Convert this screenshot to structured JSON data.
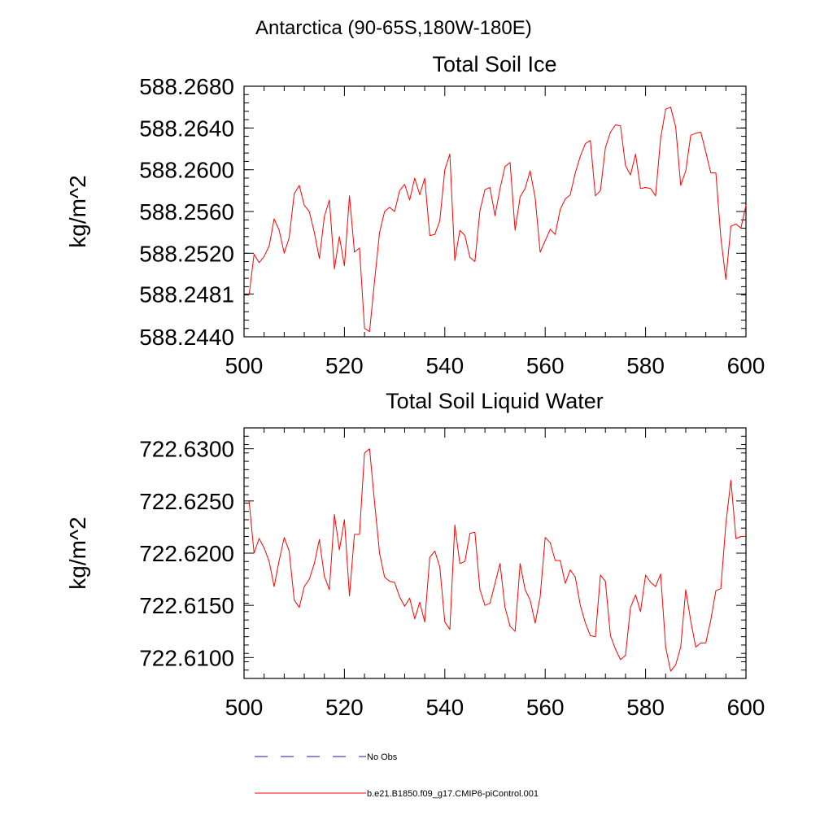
{
  "figure": {
    "supertitle": "Antarctica (90-65S,180W-180E)"
  },
  "legend": {
    "items": [
      {
        "label": "No Obs",
        "color": "#1a1a8c",
        "style": "dashed"
      },
      {
        "label": "b.e21.B1850.f09_g17.CMIP6-piControl.001",
        "color": "#ff0000",
        "style": "solid"
      }
    ]
  },
  "chart_data": [
    {
      "type": "line",
      "title": "Total Soil Ice",
      "xlabel": "",
      "ylabel": "kg/m^2",
      "xlim": [
        500,
        600
      ],
      "ylim": [
        588.244,
        588.268
      ],
      "xticks": [
        500,
        520,
        540,
        560,
        580,
        600
      ],
      "xtick_labels": [
        "500",
        "520",
        "540",
        "560",
        "580",
        "600"
      ],
      "yticks": [
        588.244,
        588.2481,
        588.252,
        588.256,
        588.26,
        588.264,
        588.268
      ],
      "ytick_labels": [
        "588.2440",
        "588.2481",
        "588.2520",
        "588.2560",
        "588.2600",
        "588.2640",
        "588.2680"
      ],
      "series": [
        {
          "name": "b.e21.B1850.f09_g17.CMIP6-piControl.001",
          "color": "#ff0000",
          "x": [
            501,
            502,
            503,
            504,
            505,
            506,
            507,
            508,
            509,
            510,
            511,
            512,
            513,
            514,
            515,
            516,
            517,
            518,
            519,
            520,
            521,
            522,
            523,
            524,
            525,
            526,
            527,
            528,
            529,
            530,
            531,
            532,
            533,
            534,
            535,
            536,
            537,
            538,
            539,
            540,
            541,
            542,
            543,
            544,
            545,
            546,
            547,
            548,
            549,
            550,
            551,
            552,
            553,
            554,
            555,
            556,
            557,
            558,
            559,
            560,
            561,
            562,
            563,
            564,
            565,
            566,
            567,
            568,
            569,
            570,
            571,
            572,
            573,
            574,
            575,
            576,
            577,
            578,
            579,
            580,
            581,
            582,
            583,
            584,
            585,
            586,
            587,
            588,
            589,
            590,
            591,
            592,
            593,
            594,
            595,
            596,
            597,
            598,
            599,
            600
          ],
          "values": [
            588.248,
            588.2519,
            588.2511,
            588.2517,
            588.2527,
            588.2553,
            588.2542,
            588.252,
            588.2535,
            588.2577,
            588.2585,
            588.2566,
            588.256,
            588.254,
            588.2515,
            588.2555,
            588.2571,
            588.2505,
            588.2536,
            588.2508,
            588.2575,
            588.2521,
            588.2525,
            588.2448,
            588.2445,
            588.2493,
            588.254,
            588.256,
            588.2564,
            588.256,
            588.258,
            588.2586,
            588.2571,
            588.2592,
            588.2576,
            588.2592,
            588.2537,
            588.2538,
            588.2551,
            588.26,
            588.2615,
            588.2513,
            588.2542,
            588.2537,
            588.2516,
            588.2512,
            588.2561,
            588.2581,
            588.2583,
            588.2556,
            588.2582,
            588.2603,
            588.2607,
            588.2542,
            588.2574,
            588.2582,
            588.2599,
            588.2573,
            588.2521,
            588.2532,
            588.2543,
            588.2538,
            588.2562,
            588.2572,
            588.2576,
            588.2597,
            588.2613,
            588.2625,
            588.2628,
            588.2575,
            588.258,
            588.2621,
            588.2636,
            588.2643,
            588.2642,
            588.2604,
            588.2595,
            588.2615,
            588.2582,
            588.2583,
            588.2582,
            588.2575,
            588.263,
            588.2658,
            588.266,
            588.2641,
            588.2585,
            588.2599,
            588.2633,
            588.2635,
            588.2636,
            588.2617,
            588.2597,
            588.2597,
            588.2535,
            588.2495,
            588.2546,
            588.2548,
            588.2544,
            588.2566
          ]
        }
      ]
    },
    {
      "type": "line",
      "title": "Total Soil Liquid Water",
      "xlabel": "",
      "ylabel": "kg/m^2",
      "xlim": [
        500,
        600
      ],
      "ylim": [
        722.608,
        722.632
      ],
      "xticks": [
        500,
        520,
        540,
        560,
        580,
        600
      ],
      "xtick_labels": [
        "500",
        "520",
        "540",
        "560",
        "580",
        "600"
      ],
      "yticks": [
        722.61,
        722.615,
        722.62,
        722.625,
        722.63
      ],
      "ytick_labels": [
        "722.6100",
        "722.6150",
        "722.6200",
        "722.6250",
        "722.6300"
      ],
      "series": [
        {
          "name": "b.e21.B1850.f09_g17.CMIP6-piControl.001",
          "color": "#ff0000",
          "x": [
            501,
            502,
            503,
            504,
            505,
            506,
            507,
            508,
            509,
            510,
            511,
            512,
            513,
            514,
            515,
            516,
            517,
            518,
            519,
            520,
            521,
            522,
            523,
            524,
            525,
            526,
            527,
            528,
            529,
            530,
            531,
            532,
            533,
            534,
            535,
            536,
            537,
            538,
            539,
            540,
            541,
            542,
            543,
            544,
            545,
            546,
            547,
            548,
            549,
            550,
            551,
            552,
            553,
            554,
            555,
            556,
            557,
            558,
            559,
            560,
            561,
            562,
            563,
            564,
            565,
            566,
            567,
            568,
            569,
            570,
            571,
            572,
            573,
            574,
            575,
            576,
            577,
            578,
            579,
            580,
            581,
            582,
            583,
            584,
            585,
            586,
            587,
            588,
            589,
            590,
            591,
            592,
            593,
            594,
            595,
            596,
            597,
            598,
            599,
            600
          ],
          "values": [
            722.625,
            722.62,
            722.6214,
            722.6205,
            722.6192,
            722.6168,
            722.6193,
            722.6215,
            722.6202,
            722.6155,
            722.6148,
            722.6168,
            722.6175,
            722.619,
            722.6213,
            722.6178,
            722.6165,
            722.6237,
            722.6203,
            722.6232,
            722.6159,
            722.6218,
            722.6218,
            722.6296,
            722.63,
            722.6249,
            722.62,
            722.6177,
            722.6173,
            722.6172,
            722.6158,
            722.6149,
            722.6157,
            722.6137,
            722.6153,
            722.6134,
            722.6196,
            722.6202,
            722.6187,
            722.6134,
            722.6127,
            722.6227,
            722.619,
            722.6192,
            722.6219,
            722.622,
            722.6165,
            722.615,
            722.6152,
            722.6171,
            722.619,
            722.6148,
            722.613,
            722.6125,
            722.619,
            722.6165,
            722.6155,
            722.6133,
            722.6158,
            722.6215,
            722.621,
            722.6193,
            722.6193,
            722.6171,
            722.6184,
            722.6177,
            722.615,
            722.6133,
            722.6121,
            722.612,
            722.6179,
            722.6173,
            722.6121,
            722.6108,
            722.6098,
            722.6102,
            722.6148,
            722.616,
            722.6144,
            722.6179,
            722.6172,
            722.6168,
            722.618,
            722.611,
            722.6087,
            722.6093,
            722.611,
            722.6165,
            722.6135,
            722.611,
            722.6114,
            722.6114,
            722.6136,
            722.6164,
            722.6166,
            722.6228,
            722.627,
            722.6214,
            722.6216,
            722.6216
          ]
        }
      ]
    }
  ]
}
